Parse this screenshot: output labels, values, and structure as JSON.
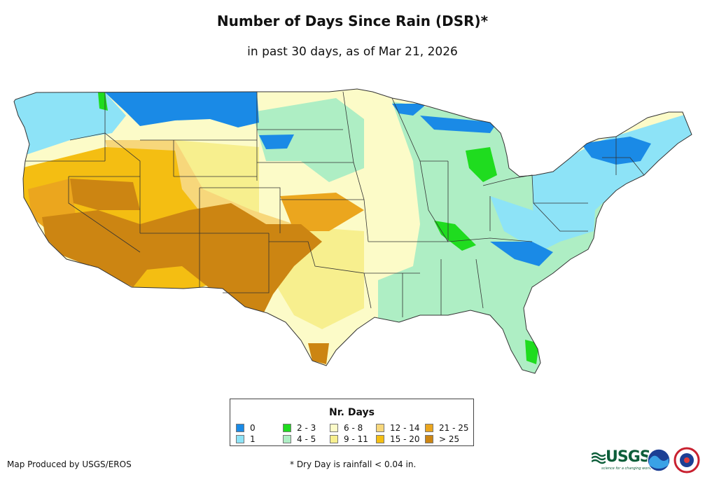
{
  "title": "Number of Days Since Rain (DSR)*",
  "subtitle": "in past 30 days, as of Mar 21, 2026",
  "legend": {
    "title": "Nr. Days",
    "items": [
      {
        "label": "0",
        "color": "#1a8ae6"
      },
      {
        "label": "1",
        "color": "#8de3f7"
      },
      {
        "label": "2 - 3",
        "color": "#1fdc1f"
      },
      {
        "label": "4 - 5",
        "color": "#aeeec4"
      },
      {
        "label": "6 - 8",
        "color": "#fcfbc8"
      },
      {
        "label": "9 - 11",
        "color": "#f7ef8e"
      },
      {
        "label": "12 - 14",
        "color": "#f7d77b"
      },
      {
        "label": "15 - 20",
        "color": "#f4be12"
      },
      {
        "label": "21 - 25",
        "color": "#eba61e"
      },
      {
        "label": "> 25",
        "color": "#cc8512"
      }
    ]
  },
  "footer": {
    "credit": "Map Produced by USGS/EROS",
    "note": "* Dry Day is rainfall < 0.04 in.",
    "logo_text": "USGS",
    "logo_tagline": "science for a changing world"
  }
}
